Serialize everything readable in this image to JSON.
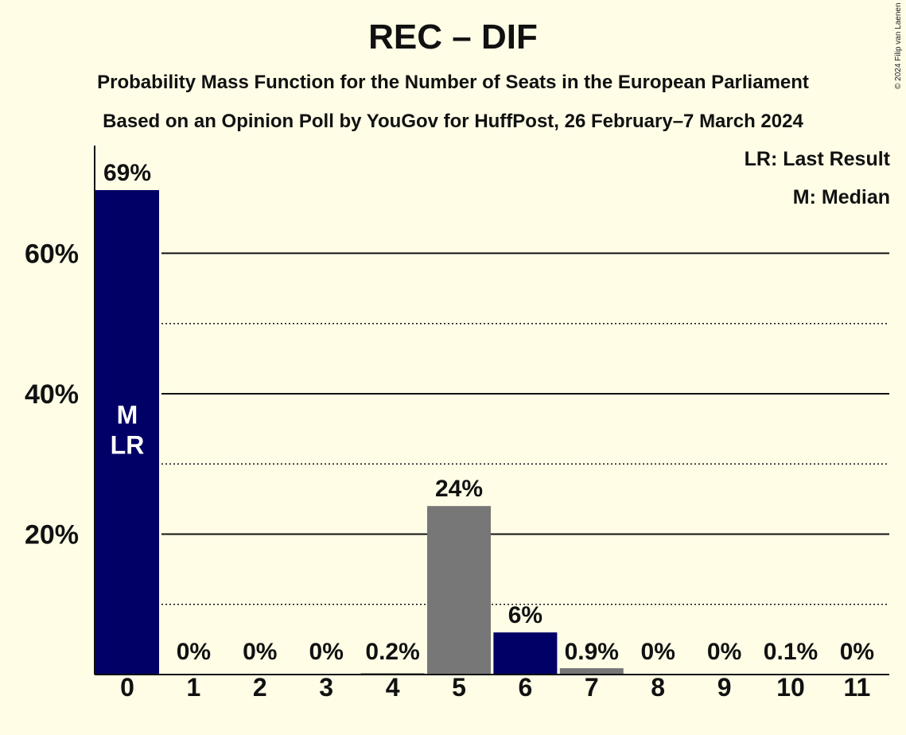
{
  "title": "REC – DIF",
  "subtitle1": "Probability Mass Function for the Number of Seats in the European Parliament",
  "subtitle2": "Based on an Opinion Poll by YouGov for HuffPost, 26 February–7 March 2024",
  "copyright": "© 2024 Filip van Laenen",
  "legend": {
    "lr": "LR: Last Result",
    "m": "M: Median"
  },
  "colors": {
    "background": "#fffde6",
    "primary": "#000066",
    "secondary": "#777777",
    "text": "#111111"
  },
  "chart_data": {
    "type": "bar",
    "categories": [
      "0",
      "1",
      "2",
      "3",
      "4",
      "5",
      "6",
      "7",
      "8",
      "9",
      "10",
      "11"
    ],
    "values": [
      69,
      0,
      0,
      0,
      0.2,
      24,
      6,
      0.9,
      0,
      0,
      0.1,
      0
    ],
    "labels": [
      "69%",
      "0%",
      "0%",
      "0%",
      "0.2%",
      "24%",
      "6%",
      "0.9%",
      "0%",
      "0%",
      "0.1%",
      "0%"
    ],
    "bar_colors": [
      "#000066",
      "#000066",
      "#000066",
      "#000066",
      "#777777",
      "#777777",
      "#000066",
      "#777777",
      "#777777",
      "#777777",
      "#777777",
      "#777777"
    ],
    "ylim": [
      0,
      69
    ],
    "yticks": [
      20,
      40,
      60
    ],
    "ytick_labels": [
      "20%",
      "40%",
      "60%"
    ],
    "minor_gridlines": [
      10,
      30,
      50
    ],
    "median_seat": "0",
    "last_result_seat": "0",
    "inbar_labels": [
      "M",
      "LR"
    ]
  }
}
